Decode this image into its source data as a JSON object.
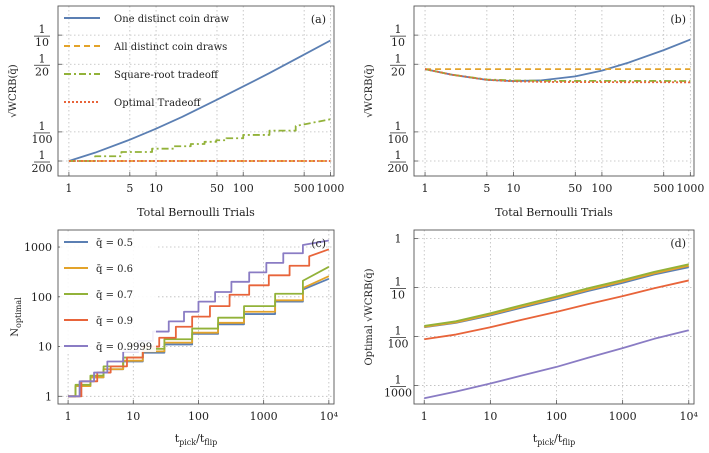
{
  "colors": {
    "blue": "#5b7fb3",
    "orange": "#e3a32a",
    "green": "#92b239",
    "red": "#e8643a",
    "purple": "#8a7cc4"
  },
  "chart_data": [
    {
      "type": "line",
      "tag": "(a)",
      "xlabel": "Total Bernoulli Trials",
      "ylabel": "√WCRB(q̄)",
      "xscale": "log",
      "yscale": "log",
      "xlim": [
        0.75,
        1100
      ],
      "ylim": [
        0.0035,
        0.2
      ],
      "xticks": [
        1,
        5,
        10,
        50,
        100,
        500,
        1000
      ],
      "xticklabels": [
        "1",
        "5",
        "10",
        "50",
        "100",
        "500",
        "1000"
      ],
      "yticks": [
        0.1,
        0.05,
        0.01,
        0.005
      ],
      "yticklabels": [
        [
          "1",
          "10"
        ],
        [
          "1",
          "20"
        ],
        [
          "1",
          "100"
        ],
        [
          "1",
          "200"
        ]
      ],
      "legend_position": "top-left",
      "series": [
        {
          "name": "One distinct coin draw",
          "color": "blue",
          "dash": "",
          "x": [
            1,
            2,
            5,
            10,
            20,
            50,
            100,
            200,
            500,
            1000
          ],
          "y": [
            0.005,
            0.0061,
            0.0083,
            0.0108,
            0.0143,
            0.0215,
            0.0295,
            0.0405,
            0.063,
            0.088
          ]
        },
        {
          "name": "All distinct coin draws",
          "color": "orange",
          "dash": "6 4",
          "x": [
            1,
            1000
          ],
          "y": [
            0.005,
            0.005
          ]
        },
        {
          "name": "Square-root tradeoff",
          "color": "green",
          "dash": "7 3 2 3",
          "x": [
            1,
            2,
            2,
            4,
            4,
            9,
            9,
            16,
            16,
            25,
            25,
            36,
            36,
            49,
            49,
            64,
            64,
            100,
            100,
            200,
            200,
            400,
            400,
            1000
          ],
          "y": [
            0.005,
            0.005,
            0.0056,
            0.0056,
            0.0062,
            0.0062,
            0.0067,
            0.0067,
            0.0071,
            0.0071,
            0.0075,
            0.0075,
            0.0079,
            0.0079,
            0.0082,
            0.0082,
            0.0086,
            0.0086,
            0.0093,
            0.0093,
            0.0103,
            0.0103,
            0.0115,
            0.0135
          ]
        },
        {
          "name": "Optimal Tradeoff",
          "color": "red",
          "dash": "2 2",
          "x": [
            1,
            1000
          ],
          "y": [
            0.005,
            0.005
          ]
        }
      ]
    },
    {
      "type": "line",
      "tag": "(b)",
      "xlabel": "Total Bernoulli Trials",
      "ylabel": "√WCRB(q̄)",
      "xscale": "log",
      "yscale": "log",
      "xlim": [
        0.75,
        1100
      ],
      "ylim": [
        0.0035,
        0.2
      ],
      "xticks": [
        1,
        5,
        10,
        50,
        100,
        500,
        1000
      ],
      "xticklabels": [
        "1",
        "5",
        "10",
        "50",
        "100",
        "500",
        "1000"
      ],
      "yticks": [
        0.1,
        0.05,
        0.01,
        0.005
      ],
      "yticklabels": [
        [
          "1",
          "10"
        ],
        [
          "1",
          "20"
        ],
        [
          "1",
          "100"
        ],
        [
          "1",
          "200"
        ]
      ],
      "series": [
        {
          "name": "",
          "color": "blue",
          "dash": "",
          "x": [
            1,
            2,
            5,
            10,
            20,
            50,
            100,
            200,
            500,
            1000
          ],
          "y": [
            0.0445,
            0.039,
            0.0345,
            0.0335,
            0.034,
            0.0375,
            0.043,
            0.052,
            0.07,
            0.09
          ]
        },
        {
          "name": "",
          "color": "orange",
          "dash": "6 4",
          "x": [
            1,
            1000
          ],
          "y": [
            0.0445,
            0.0445
          ]
        },
        {
          "name": "",
          "color": "green",
          "dash": "7 3 2 3",
          "x": [
            1,
            2,
            5,
            10,
            20,
            50,
            100,
            200,
            500,
            1000
          ],
          "y": [
            0.0445,
            0.039,
            0.0348,
            0.034,
            0.0337,
            0.0336,
            0.0337,
            0.0336,
            0.0336,
            0.0335
          ]
        },
        {
          "name": "",
          "color": "red",
          "dash": "2 2",
          "x": [
            1,
            2,
            5,
            10,
            20,
            50,
            100,
            200,
            500,
            1000
          ],
          "y": [
            0.0445,
            0.039,
            0.0345,
            0.0333,
            0.0329,
            0.0327,
            0.0327,
            0.0326,
            0.0326,
            0.0325
          ]
        }
      ]
    },
    {
      "type": "line",
      "tag": "(c)",
      "xlabel": "t_pick/t_flip",
      "ylabel": "N_optimal",
      "xscale": "log",
      "yscale": "log",
      "xlim": [
        0.7,
        12000
      ],
      "ylim": [
        0.7,
        2200
      ],
      "xticks": [
        1,
        10,
        100,
        1000,
        10000
      ],
      "xticklabels": [
        "1",
        "10",
        "100",
        "1000",
        "10⁴"
      ],
      "yticks": [
        1,
        10,
        100,
        1000
      ],
      "yticklabels": [
        "1",
        "10",
        "100",
        "1000"
      ],
      "legend_position": "top-left",
      "series": [
        {
          "name": "q̄ = 0.5",
          "color": "blue",
          "x": [
            1,
            1.3,
            1.3,
            2.2,
            2.2,
            3.5,
            3.5,
            7,
            7,
            14,
            14,
            30,
            30,
            80,
            80,
            200,
            200,
            500,
            500,
            1500,
            1500,
            4000,
            4000,
            10000
          ],
          "y": [
            1,
            1,
            1.6,
            1.6,
            2.4,
            2.4,
            3.5,
            3.5,
            5,
            5,
            7.5,
            7.5,
            11,
            11,
            18,
            18,
            28,
            28,
            45,
            45,
            80,
            80,
            140,
            230
          ]
        },
        {
          "name": "q̄ = 0.6",
          "color": "orange",
          "x": [
            1,
            1.3,
            1.3,
            2.2,
            2.2,
            3.5,
            3.5,
            7,
            7,
            14,
            14,
            30,
            30,
            80,
            80,
            200,
            200,
            500,
            500,
            1500,
            1500,
            4000,
            4000,
            10000
          ],
          "y": [
            1,
            1,
            1.6,
            1.6,
            2.4,
            2.4,
            3.5,
            3.5,
            5.2,
            5.2,
            8,
            8,
            12,
            12,
            19,
            19,
            30,
            30,
            50,
            50,
            85,
            85,
            150,
            260
          ]
        },
        {
          "name": "q̄ = 0.7",
          "color": "green",
          "x": [
            1,
            1.3,
            1.3,
            2.2,
            2.2,
            3.5,
            3.5,
            7,
            7,
            14,
            14,
            30,
            30,
            80,
            80,
            200,
            200,
            500,
            500,
            1500,
            1500,
            4000,
            4000,
            10000
          ],
          "y": [
            1,
            1,
            1.7,
            1.7,
            2.6,
            2.6,
            4,
            4,
            6,
            6,
            9,
            9,
            14,
            14,
            23,
            23,
            38,
            38,
            65,
            65,
            115,
            115,
            210,
            400
          ]
        },
        {
          "name": "q̄ = 0.9",
          "color": "red",
          "x": [
            1,
            1.6,
            1.6,
            2.8,
            2.8,
            4.5,
            4.5,
            8,
            8,
            14,
            14,
            25,
            25,
            45,
            45,
            80,
            80,
            150,
            150,
            300,
            300,
            600,
            600,
            1200,
            1200,
            2500,
            2500,
            5000,
            5000,
            10000
          ],
          "y": [
            1,
            1,
            2,
            2,
            3,
            3,
            4,
            4,
            6,
            6,
            10,
            10,
            15,
            15,
            25,
            25,
            40,
            40,
            65,
            65,
            110,
            110,
            170,
            170,
            270,
            270,
            420,
            420,
            650,
            900
          ]
        },
        {
          "name": "q̄ = 0.9999",
          "color": "purple",
          "x": [
            1,
            1.5,
            1.5,
            2.5,
            2.5,
            4,
            4,
            7,
            7,
            12,
            12,
            20,
            20,
            35,
            35,
            60,
            60,
            100,
            100,
            180,
            180,
            320,
            320,
            600,
            600,
            1100,
            1100,
            2000,
            2000,
            4000,
            4000,
            10000
          ],
          "y": [
            1,
            1,
            2,
            2,
            3,
            3,
            5,
            5,
            8,
            8,
            13,
            13,
            20,
            20,
            32,
            32,
            50,
            50,
            80,
            80,
            125,
            125,
            200,
            200,
            310,
            310,
            480,
            480,
            750,
            750,
            1100,
            1350
          ]
        }
      ]
    },
    {
      "type": "line",
      "tag": "(d)",
      "xlabel": "t_pick/t_flip",
      "ylabel": "Optimal √WCRB(q̄)",
      "xscale": "log",
      "yscale": "log",
      "xlim": [
        0.7,
        12000
      ],
      "ylim": [
        0.00042,
        1.5
      ],
      "xticks": [
        1,
        10,
        100,
        1000,
        10000
      ],
      "xticklabels": [
        "1",
        "10",
        "100",
        "1000",
        "10⁴"
      ],
      "yticks": [
        1,
        0.1,
        0.01,
        0.001
      ],
      "yticklabels": [
        [
          "1"
        ],
        [
          "1",
          "10"
        ],
        [
          "1",
          "100"
        ],
        [
          "1",
          "1000"
        ]
      ],
      "series": [
        {
          "name": "",
          "color": "blue",
          "x": [
            1,
            3,
            10,
            30,
            100,
            300,
            1000,
            3000,
            10000
          ],
          "y": [
            0.0155,
            0.019,
            0.027,
            0.039,
            0.058,
            0.085,
            0.125,
            0.185,
            0.26
          ]
        },
        {
          "name": "",
          "color": "orange",
          "x": [
            1,
            3,
            10,
            30,
            100,
            300,
            1000,
            3000,
            10000
          ],
          "y": [
            0.0158,
            0.0195,
            0.028,
            0.041,
            0.061,
            0.09,
            0.133,
            0.195,
            0.28
          ]
        },
        {
          "name": "",
          "color": "green",
          "x": [
            1,
            3,
            10,
            30,
            100,
            300,
            1000,
            3000,
            10000
          ],
          "y": [
            0.0165,
            0.0205,
            0.03,
            0.044,
            0.066,
            0.097,
            0.143,
            0.21,
            0.3
          ]
        },
        {
          "name": "",
          "color": "red",
          "x": [
            1,
            3,
            10,
            30,
            100,
            300,
            1000,
            3000,
            10000
          ],
          "y": [
            0.0088,
            0.011,
            0.0155,
            0.022,
            0.032,
            0.046,
            0.067,
            0.097,
            0.14
          ]
        },
        {
          "name": "",
          "color": "purple",
          "x": [
            1,
            3,
            10,
            30,
            100,
            300,
            1000,
            3000,
            10000
          ],
          "y": [
            0.00055,
            0.00075,
            0.0011,
            0.0016,
            0.0024,
            0.0037,
            0.0058,
            0.009,
            0.0135
          ]
        }
      ]
    }
  ]
}
